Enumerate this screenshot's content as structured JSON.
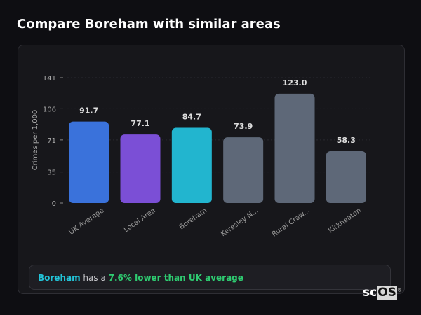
{
  "title": "Compare Boreham with similar areas",
  "chart_data": {
    "type": "bar",
    "ylabel": "Crimes per 1,000",
    "yticks": [
      0,
      35,
      71,
      106,
      141
    ],
    "ylim": [
      0,
      141
    ],
    "categories": [
      "UK Average",
      "Local Area",
      "Boreham",
      "Keresley N...",
      "Rural Craw...",
      "Kirkheaton"
    ],
    "values": [
      91.7,
      77.1,
      84.7,
      73.9,
      123.0,
      58.3
    ],
    "labels": [
      "91.7",
      "77.1",
      "84.7",
      "73.9",
      "123.0",
      "58.3"
    ],
    "colors": [
      "#3a72db",
      "#7b4fd6",
      "#22b5cf",
      "#5e6878",
      "#5e6878",
      "#5e6878"
    ]
  },
  "summary": {
    "area": "Boreham",
    "middle": "has a",
    "highlight": "7.6% lower than UK average"
  },
  "logo": {
    "sc": "sc",
    "os": "OS",
    "reg": "®"
  }
}
